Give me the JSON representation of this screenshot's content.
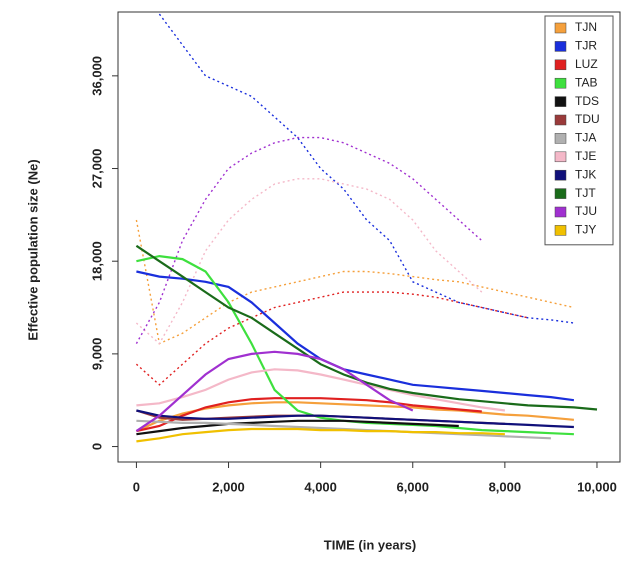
{
  "chart_data": {
    "type": "line",
    "x_label": "TIME (in years)",
    "y_label": "Effective population size (Ne)",
    "x": [
      0,
      500,
      1000,
      1500,
      2000,
      2500,
      3000,
      3500,
      4000,
      4500,
      5000,
      5500,
      6000,
      6500,
      7000,
      7500,
      8000,
      8500,
      9000,
      9500,
      10000
    ],
    "xlim": [
      -400,
      10500
    ],
    "ylim": [
      -1500,
      42200
    ],
    "xticks": [
      0,
      {
        "value": 2000,
        "label": "2,000"
      },
      {
        "value": 4000,
        "label": "4,000"
      },
      {
        "value": 6000,
        "label": "6,000"
      },
      {
        "value": 8000,
        "label": "8,000"
      },
      {
        "value": 10000,
        "label": "10,000"
      }
    ],
    "yticks": [
      0,
      {
        "value": 9000,
        "label": "9,000"
      },
      {
        "value": 18000,
        "label": "18,000"
      },
      {
        "value": 27000,
        "label": "27,000"
      },
      {
        "value": 36000,
        "label": "36,000"
      }
    ],
    "legend": "top-right",
    "series": [
      {
        "name": "TJN",
        "color": "#f5a03c",
        "values": [
          1500,
          2500,
          3200,
          3700,
          4000,
          4200,
          4300,
          4300,
          4200,
          4100,
          4000,
          3900,
          3800,
          3600,
          3500,
          3300,
          3100,
          3000,
          2800,
          2600,
          null
        ],
        "upper": [
          22000,
          10000,
          11000,
          12500,
          14000,
          15000,
          15500,
          16000,
          16500,
          17000,
          17000,
          16800,
          16500,
          16200,
          16000,
          15500,
          15000,
          14500,
          14000,
          13500,
          null
        ]
      },
      {
        "name": "TJR",
        "color": "#1a2fdc",
        "values": [
          17000,
          16500,
          16300,
          16000,
          15500,
          14000,
          12000,
          10000,
          8500,
          7500,
          7000,
          6500,
          6000,
          5800,
          5600,
          5400,
          5200,
          5000,
          4800,
          4500,
          null
        ],
        "upper": [
          null,
          42000,
          39000,
          36000,
          35000,
          34000,
          32000,
          30000,
          27000,
          25000,
          22000,
          20000,
          16000,
          15000,
          14000,
          13500,
          13000,
          12500,
          12300,
          12000,
          null
        ]
      },
      {
        "name": "LUZ",
        "color": "#e02020",
        "values": [
          1500,
          2000,
          3000,
          3800,
          4300,
          4600,
          4700,
          4700,
          4700,
          4600,
          4500,
          4300,
          4000,
          3800,
          3600,
          3400,
          null,
          null,
          null,
          null,
          null
        ],
        "upper": [
          8000,
          6000,
          8000,
          10000,
          11500,
          12500,
          13500,
          14000,
          14500,
          15000,
          15000,
          15000,
          14800,
          14500,
          14000,
          13500,
          13000,
          12500,
          null,
          null,
          null
        ]
      },
      {
        "name": "TAB",
        "color": "#3ee03e",
        "values": [
          18000,
          18500,
          18200,
          17000,
          14000,
          10000,
          5500,
          3500,
          2800,
          2500,
          2300,
          2200,
          2100,
          2000,
          1800,
          1600,
          1500,
          1400,
          1300,
          1200,
          null
        ]
      },
      {
        "name": "TDS",
        "color": "#111111",
        "values": [
          1200,
          1500,
          1800,
          2000,
          2200,
          2300,
          2400,
          2500,
          2500,
          2500,
          2400,
          2300,
          2200,
          2100,
          2000,
          null,
          null,
          null,
          null,
          null,
          null
        ]
      },
      {
        "name": "TDU",
        "color": "#9a3a3a",
        "values": [
          3500,
          2800,
          2600,
          2700,
          2800,
          2900,
          3000,
          3000,
          3000,
          2900,
          2800,
          2700,
          2600,
          2500,
          2400,
          2300,
          2200,
          null,
          null,
          null,
          null
        ]
      },
      {
        "name": "TJA",
        "color": "#b0b0b0",
        "values": [
          2500,
          2400,
          2300,
          2300,
          2200,
          2100,
          2000,
          1900,
          1800,
          1700,
          1600,
          1500,
          1400,
          1300,
          1200,
          1100,
          1000,
          900,
          800,
          null,
          null
        ]
      },
      {
        "name": "TJE",
        "color": "#f4b8c8",
        "values": [
          4000,
          4200,
          4800,
          5500,
          6500,
          7200,
          7500,
          7400,
          7000,
          6500,
          6000,
          5500,
          5000,
          4600,
          4200,
          3800,
          3500,
          null,
          null,
          null,
          null
        ],
        "upper": [
          12000,
          10000,
          14000,
          19000,
          22000,
          24000,
          25500,
          26000,
          26000,
          25500,
          25000,
          24000,
          22000,
          19000,
          17000,
          15000,
          null,
          null,
          null,
          null,
          null
        ]
      },
      {
        "name": "TJK",
        "color": "#10107a",
        "values": [
          3500,
          3000,
          2800,
          2700,
          2700,
          2800,
          2900,
          3000,
          3000,
          2900,
          2800,
          2700,
          2600,
          2500,
          2400,
          2300,
          2200,
          2100,
          2000,
          1900,
          null
        ]
      },
      {
        "name": "TJT",
        "color": "#1a6b1a",
        "values": [
          19500,
          18000,
          16500,
          15000,
          13500,
          12500,
          11000,
          9500,
          8000,
          7000,
          6200,
          5600,
          5200,
          4900,
          4600,
          4400,
          4200,
          4000,
          3900,
          3800,
          3600
        ]
      },
      {
        "name": "TJU",
        "color": "#a030d0",
        "values": [
          1500,
          3000,
          5000,
          7000,
          8500,
          9000,
          9200,
          9000,
          8500,
          7500,
          6000,
          4500,
          3500,
          null,
          null,
          null,
          null,
          null,
          null,
          null,
          null
        ],
        "upper": [
          10000,
          14000,
          20000,
          24000,
          27000,
          28500,
          29500,
          30000,
          30000,
          29500,
          28500,
          27500,
          26000,
          24000,
          22000,
          20000,
          null,
          null,
          null,
          null,
          null
        ]
      },
      {
        "name": "TJY",
        "color": "#f0c000",
        "values": [
          500,
          800,
          1200,
          1400,
          1600,
          1700,
          1700,
          1700,
          1600,
          1600,
          1500,
          1500,
          1400,
          1400,
          1300,
          1300,
          1200,
          null,
          null,
          null,
          null
        ]
      }
    ]
  }
}
